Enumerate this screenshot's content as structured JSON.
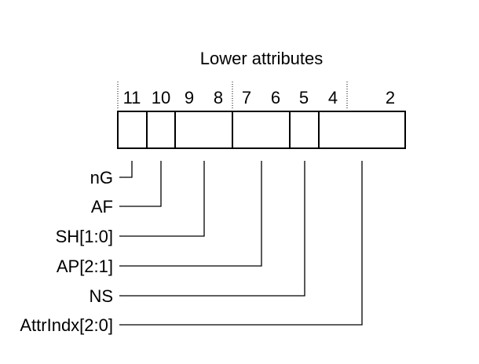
{
  "title": "Lower attributes",
  "bit_numbers": [
    "11",
    "10",
    "9",
    "8",
    "7",
    "6",
    "5",
    "4",
    "2"
  ],
  "fields": [
    {
      "label": "nG",
      "bits": "11"
    },
    {
      "label": "AF",
      "bits": "10"
    },
    {
      "label": "SH[1:0]",
      "bits": "9:8"
    },
    {
      "label": "AP[2:1]",
      "bits": "7:6"
    },
    {
      "label": "NS",
      "bits": "5"
    },
    {
      "label": "AttrIndx[2:0]",
      "bits": "4:2"
    }
  ]
}
